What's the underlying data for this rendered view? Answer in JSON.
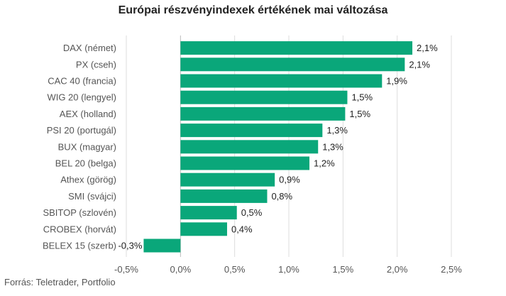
{
  "chart_data": {
    "type": "bar",
    "orientation": "horizontal",
    "title": "Európai részvényindexek értékének mai változása",
    "categories": [
      "DAX (német)",
      "PX (cseh)",
      "CAC 40 (francia)",
      "WIG 20 (lengyel)",
      "AEX (holland)",
      "PSI 20 (portugál)",
      "BUX (magyar)",
      "BEL 20 (belga)",
      "Athex (görög)",
      "SMI (svájci)",
      "SBITOP (szlovén)",
      "CROBEX (horvát)",
      "BELEX 15 (szerb)"
    ],
    "values": [
      2.14,
      2.07,
      1.86,
      1.54,
      1.52,
      1.31,
      1.27,
      1.19,
      0.87,
      0.8,
      0.52,
      0.43,
      -0.34
    ],
    "value_labels": [
      "2,1%",
      "2,1%",
      "1,9%",
      "1,5%",
      "1,5%",
      "1,3%",
      "1,3%",
      "1,2%",
      "0,9%",
      "0,8%",
      "0,5%",
      "0,4%",
      "-0,3%"
    ],
    "xlim": [
      -0.5,
      2.5
    ],
    "xticks": [
      -0.5,
      0,
      0.5,
      1,
      1.5,
      2,
      2.5
    ],
    "xtick_labels": [
      "-0,5%",
      "0,0%",
      "0,5%",
      "1,0%",
      "1,5%",
      "2,0%",
      "2,5%"
    ],
    "bar_color": "#0aa77a",
    "grid": true,
    "legend": false
  },
  "source": "Forrás: Teletrader, Portfolio"
}
